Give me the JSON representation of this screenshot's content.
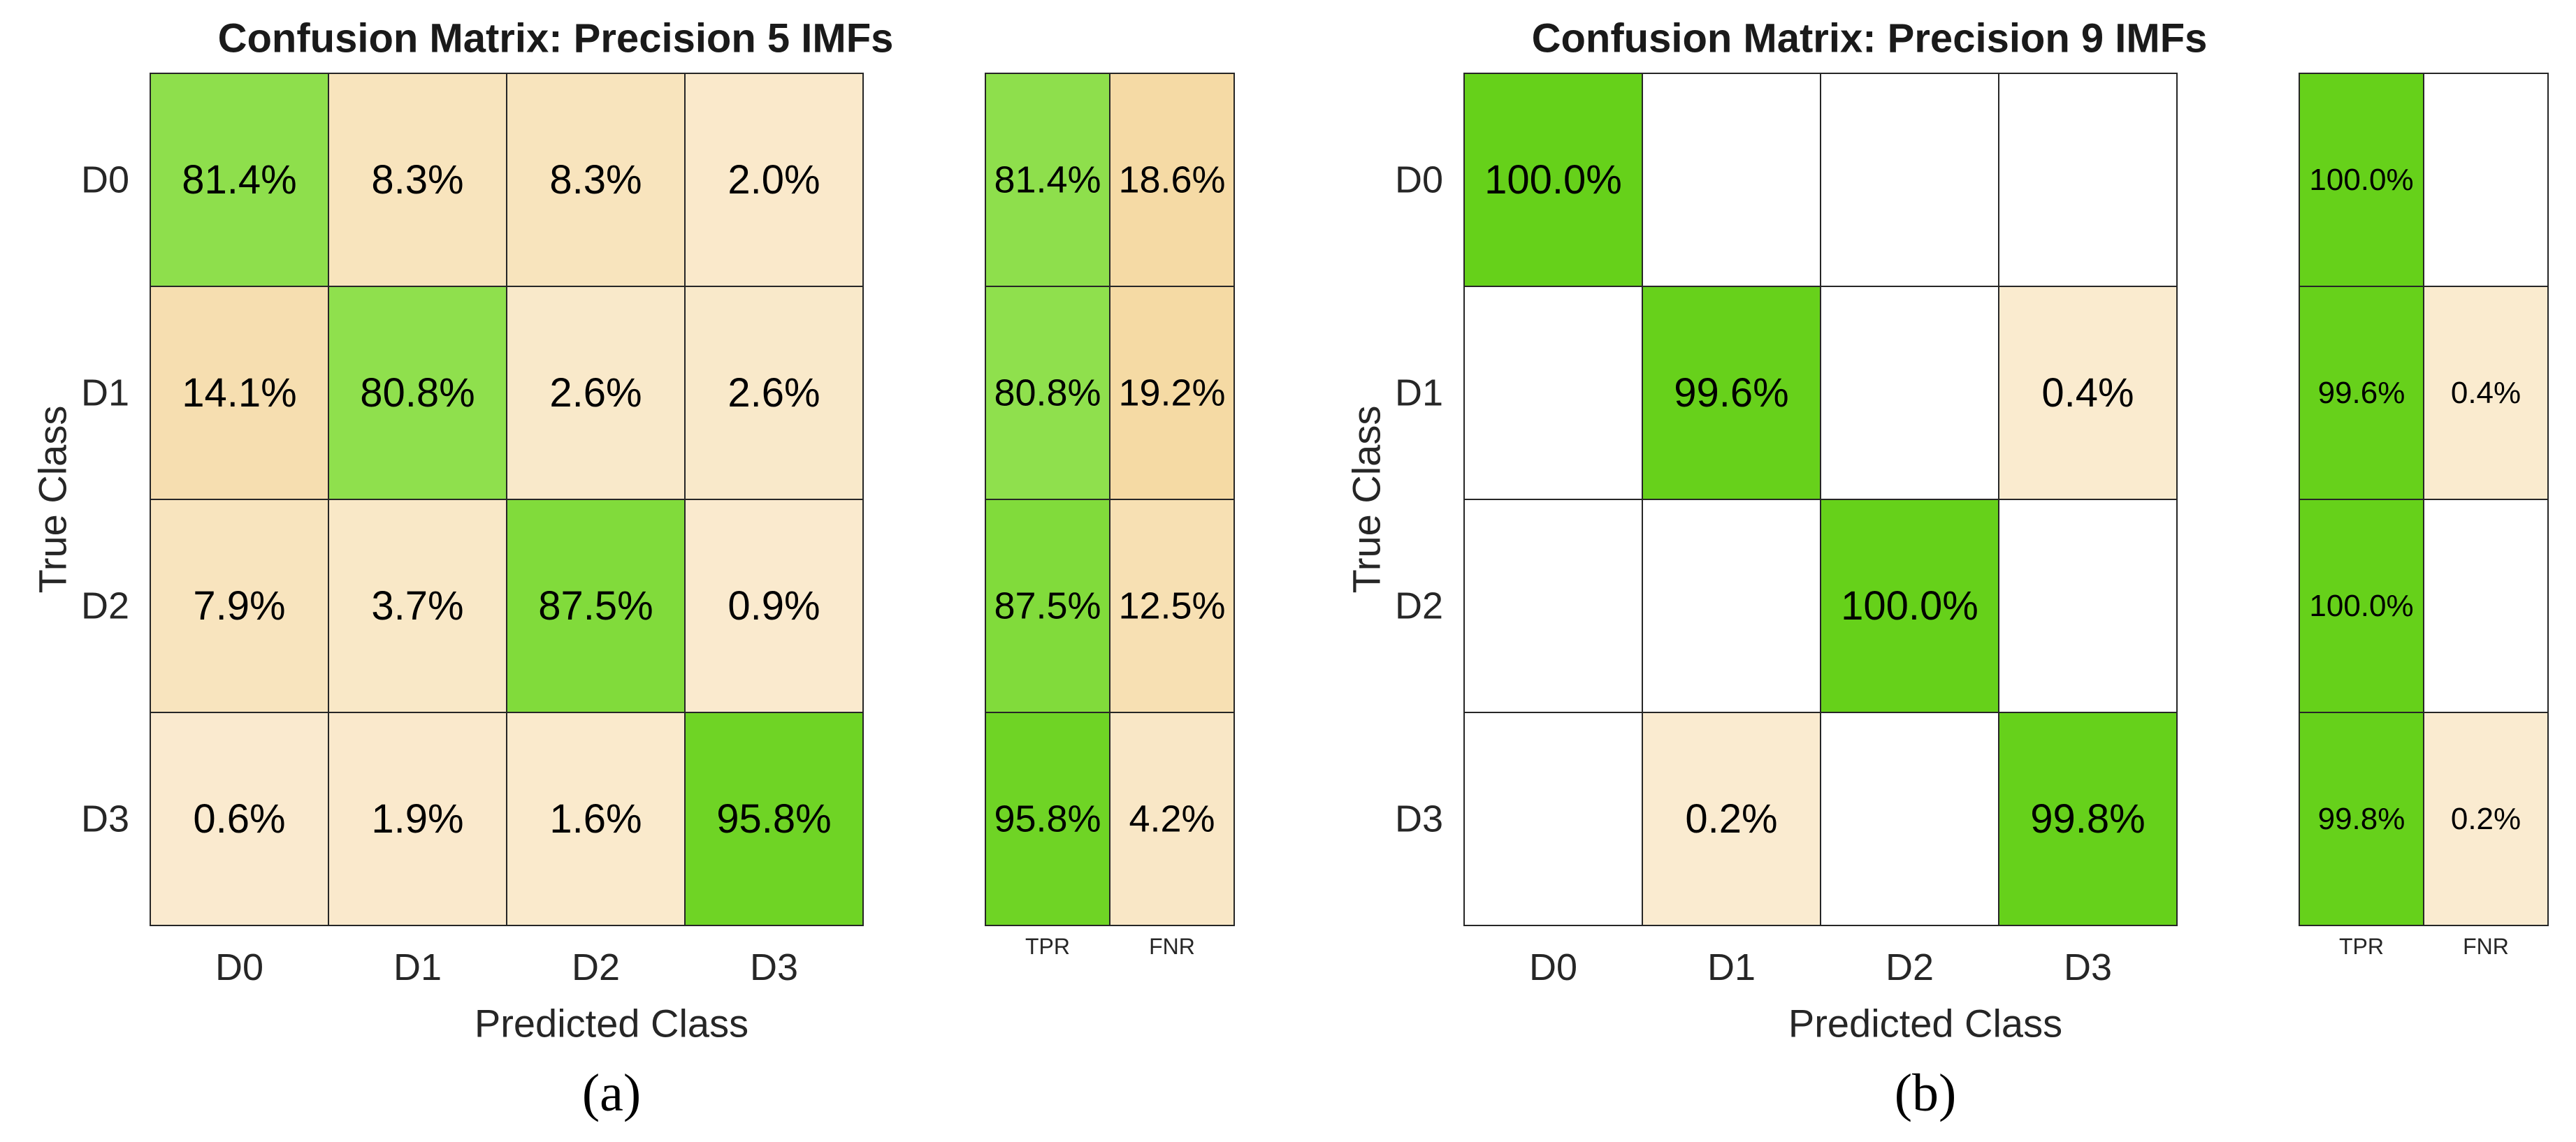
{
  "chart_data": [
    {
      "type": "heatmap",
      "title": "Confusion Matrix: Precision 5 IMFs",
      "xlabel": "Predicted Class",
      "ylabel": "True Class",
      "panel_label": "(a)",
      "row_labels": [
        "D0",
        "D1",
        "D2",
        "D3"
      ],
      "col_labels": [
        "D0",
        "D1",
        "D2",
        "D3"
      ],
      "values": [
        [
          81.4,
          8.3,
          8.3,
          2.0
        ],
        [
          14.1,
          80.8,
          2.6,
          2.6
        ],
        [
          7.9,
          3.7,
          87.5,
          0.9
        ],
        [
          0.6,
          1.9,
          1.6,
          95.8
        ]
      ],
      "summary_labels": [
        "TPR",
        "FNR"
      ],
      "summary": [
        [
          81.4,
          18.6
        ],
        [
          80.8,
          19.2
        ],
        [
          87.5,
          12.5
        ],
        [
          95.8,
          4.2
        ]
      ]
    },
    {
      "type": "heatmap",
      "title": "Confusion Matrix: Precision 9 IMFs",
      "xlabel": "Predicted Class",
      "ylabel": "True Class",
      "panel_label": "(b)",
      "row_labels": [
        "D0",
        "D1",
        "D2",
        "D3"
      ],
      "col_labels": [
        "D0",
        "D1",
        "D2",
        "D3"
      ],
      "values": [
        [
          100.0,
          0,
          0,
          0
        ],
        [
          0,
          99.6,
          0,
          0.4
        ],
        [
          0,
          0,
          100.0,
          0
        ],
        [
          0,
          0.2,
          0,
          99.8
        ]
      ],
      "summary_labels": [
        "TPR",
        "FNR"
      ],
      "summary": [
        [
          100.0,
          0
        ],
        [
          99.6,
          0.4
        ],
        [
          100.0,
          0
        ],
        [
          99.8,
          0.2
        ]
      ]
    }
  ],
  "colors": {
    "correct": "#66d11a",
    "error_light": "#faebd0",
    "error_dark": "#f5d9a2",
    "empty": "#ffffff",
    "border": "#262626"
  }
}
